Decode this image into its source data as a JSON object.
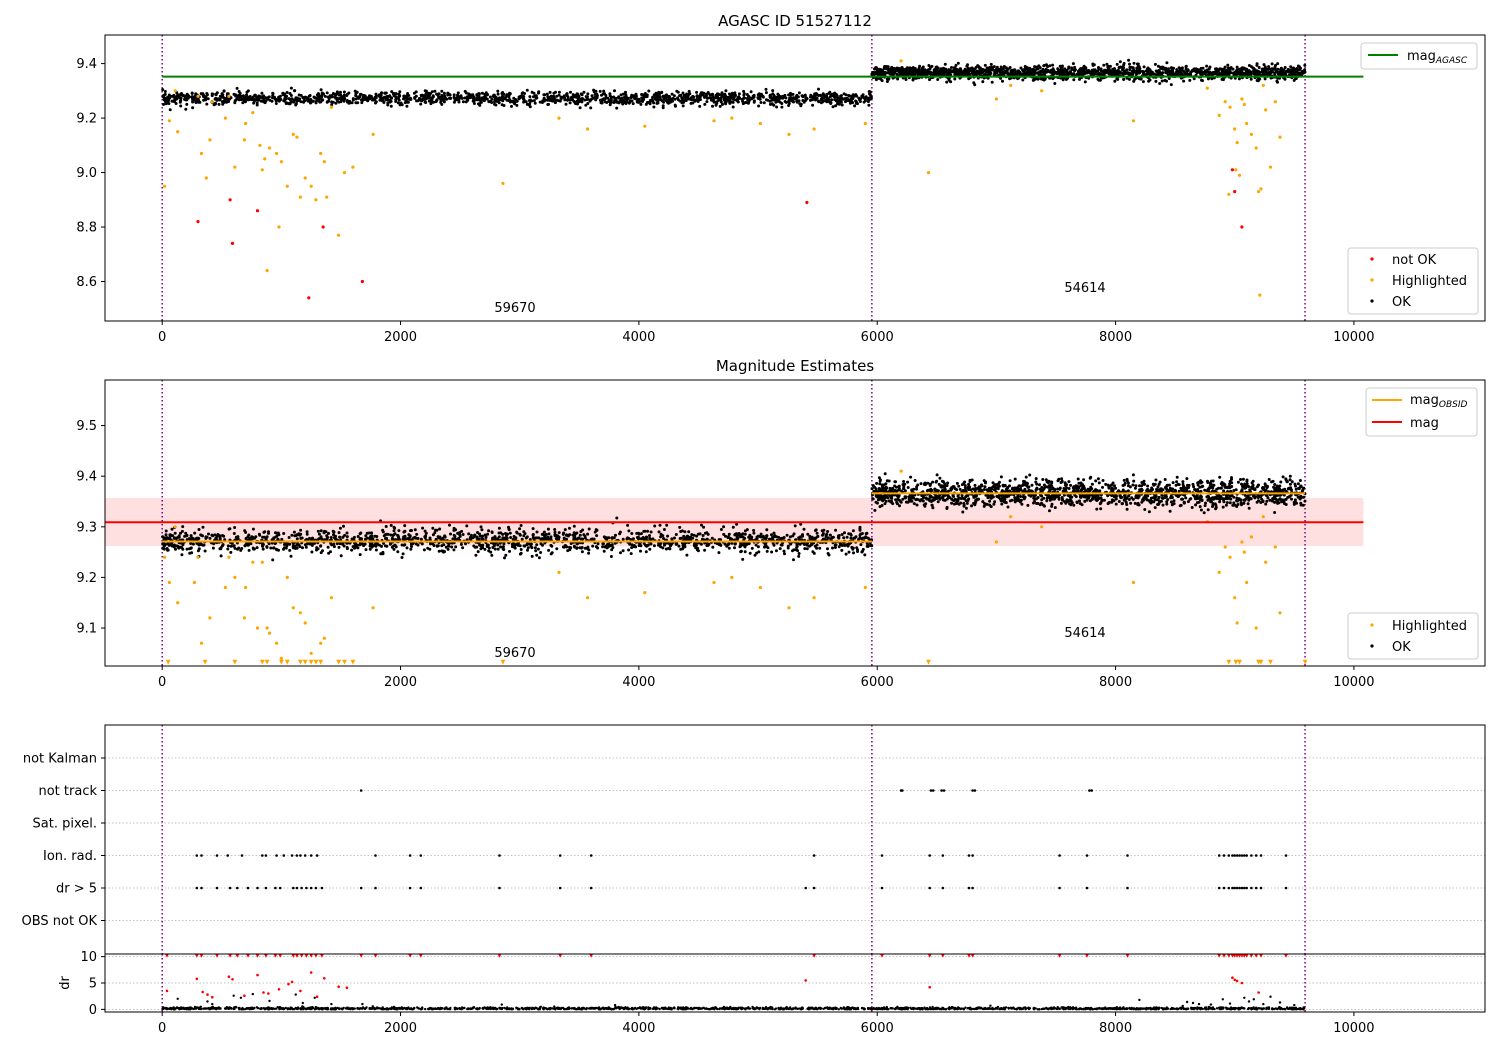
{
  "colors": {
    "ok": "#000000",
    "highlighted": "#ffa500",
    "not_ok": "#ff0000",
    "mag_agasc": "#008000",
    "mag_obsid": "#ffa500",
    "mag": "#ff0000",
    "band": "#ffcccc",
    "obs_boundary": "#800080",
    "grid": "#b0b0b0"
  },
  "chart_data": [
    {
      "type": "scatter",
      "title": "AGASC ID 51527112",
      "xlim": [
        -480,
        11100
      ],
      "ylim": [
        8.455,
        9.505
      ],
      "x_ticks": [
        0,
        2000,
        4000,
        6000,
        8000,
        10000
      ],
      "y_ticks": [
        8.6,
        8.8,
        9.0,
        9.2,
        9.4
      ],
      "y_tick_labels": [
        "8.6",
        "8.8",
        "9.0",
        "9.2",
        "9.4"
      ],
      "obs_boundaries": [
        0,
        5955,
        9590
      ],
      "annotations": [
        {
          "text": "59670",
          "x": 2970,
          "y": 8.49
        },
        {
          "text": "54614",
          "x": 7760,
          "y": 8.57
        }
      ],
      "reference_lines": [
        {
          "name": "mag",
          "sub": "AGASC",
          "y": 9.352,
          "x0": 0,
          "x1": 10080,
          "color": "#008000"
        }
      ],
      "segments": [
        {
          "x0": 0,
          "x1": 5955,
          "mean": 9.272,
          "spread": 0.012
        },
        {
          "x0": 5955,
          "x1": 9590,
          "mean": 9.366,
          "spread": 0.013
        }
      ],
      "highlighted_points": [
        [
          20,
          8.95
        ],
        [
          60,
          9.19
        ],
        [
          110,
          9.3
        ],
        [
          130,
          9.15
        ],
        [
          300,
          9.28
        ],
        [
          330,
          9.07
        ],
        [
          370,
          8.98
        ],
        [
          400,
          9.12
        ],
        [
          420,
          9.26
        ],
        [
          530,
          9.2
        ],
        [
          560,
          9.28
        ],
        [
          610,
          9.02
        ],
        [
          690,
          9.12
        ],
        [
          700,
          9.18
        ],
        [
          760,
          9.22
        ],
        [
          820,
          9.1
        ],
        [
          840,
          9.01
        ],
        [
          860,
          9.05
        ],
        [
          880,
          8.64
        ],
        [
          900,
          9.09
        ],
        [
          960,
          9.07
        ],
        [
          980,
          8.8
        ],
        [
          1000,
          9.04
        ],
        [
          1050,
          8.95
        ],
        [
          1100,
          9.14
        ],
        [
          1130,
          9.13
        ],
        [
          1160,
          8.91
        ],
        [
          1200,
          8.98
        ],
        [
          1250,
          8.95
        ],
        [
          1290,
          8.9
        ],
        [
          1330,
          9.07
        ],
        [
          1360,
          9.04
        ],
        [
          1380,
          8.91
        ],
        [
          1420,
          9.24
        ],
        [
          1480,
          8.77
        ],
        [
          1530,
          9.0
        ],
        [
          1600,
          9.02
        ],
        [
          1770,
          9.14
        ],
        [
          2860,
          8.96
        ],
        [
          3330,
          9.2
        ],
        [
          3570,
          9.16
        ],
        [
          4050,
          9.17
        ],
        [
          4630,
          9.19
        ],
        [
          4780,
          9.2
        ],
        [
          5020,
          9.18
        ],
        [
          5260,
          9.14
        ],
        [
          5470,
          9.16
        ],
        [
          5900,
          9.18
        ],
        [
          6200,
          9.41
        ],
        [
          6430,
          9.0
        ],
        [
          7000,
          9.27
        ],
        [
          7120,
          9.32
        ],
        [
          7380,
          9.3
        ],
        [
          8150,
          9.19
        ],
        [
          8770,
          9.31
        ],
        [
          8870,
          9.21
        ],
        [
          8920,
          9.26
        ],
        [
          8960,
          9.24
        ],
        [
          9000,
          9.16
        ],
        [
          9020,
          9.11
        ],
        [
          9040,
          8.99
        ],
        [
          9060,
          9.27
        ],
        [
          9080,
          9.25
        ],
        [
          9100,
          9.18
        ],
        [
          9140,
          9.14
        ],
        [
          9180,
          9.09
        ],
        [
          9200,
          8.93
        ],
        [
          9210,
          8.55
        ],
        [
          9240,
          9.32
        ],
        [
          9260,
          9.23
        ],
        [
          9300,
          9.02
        ],
        [
          9340,
          9.26
        ],
        [
          9380,
          9.13
        ],
        [
          8950,
          8.92
        ],
        [
          9010,
          9.01
        ],
        [
          9220,
          8.94
        ]
      ],
      "not_ok_points": [
        [
          300,
          8.82
        ],
        [
          570,
          8.9
        ],
        [
          590,
          8.74
        ],
        [
          800,
          8.86
        ],
        [
          1230,
          8.54
        ],
        [
          1350,
          8.8
        ],
        [
          1680,
          8.6
        ],
        [
          5410,
          8.89
        ],
        [
          8980,
          9.01
        ],
        [
          9000,
          8.93
        ],
        [
          9060,
          8.8
        ]
      ],
      "legends": [
        {
          "position": "top-right",
          "entries": [
            {
              "label": "mag",
              "sub": "AGASC",
              "kind": "line",
              "color": "#008000"
            }
          ]
        },
        {
          "position": "bottom-right",
          "entries": [
            {
              "label": "not OK",
              "kind": "dot",
              "color": "#ff0000"
            },
            {
              "label": "Highlighted",
              "kind": "dot",
              "color": "#ffa500"
            },
            {
              "label": "OK",
              "kind": "dot",
              "color": "#000000"
            }
          ]
        }
      ]
    },
    {
      "type": "scatter",
      "title": "Magnitude Estimates",
      "xlim": [
        -480,
        11100
      ],
      "ylim": [
        9.025,
        9.59
      ],
      "x_ticks": [
        0,
        2000,
        4000,
        6000,
        8000,
        10000
      ],
      "y_ticks": [
        9.1,
        9.2,
        9.3,
        9.4,
        9.5
      ],
      "y_tick_labels": [
        "9.1",
        "9.2",
        "9.3",
        "9.4",
        "9.5"
      ],
      "obs_boundaries": [
        0,
        5955,
        9590
      ],
      "annotations": [
        {
          "text": "59670",
          "x": 2970,
          "y": 9.045
        },
        {
          "text": "54614",
          "x": 7760,
          "y": 9.085
        }
      ],
      "band": {
        "y0": 9.262,
        "y1": 9.357,
        "x0": -480,
        "x1": 10080
      },
      "reference_lines": [
        {
          "name": "mag",
          "sub": "",
          "y": 9.309,
          "x0": -480,
          "x1": 10080,
          "color": "#ff0000"
        }
      ],
      "segment_lines": [
        {
          "x0": 0,
          "x1": 5955,
          "y": 9.271,
          "color": "#ffa500"
        },
        {
          "x0": 5955,
          "x1": 9590,
          "y": 9.366,
          "color": "#ffa500"
        }
      ],
      "segments": [
        {
          "x0": 0,
          "x1": 5955,
          "mean": 9.272,
          "spread": 0.012
        },
        {
          "x0": 5955,
          "x1": 9590,
          "mean": 9.366,
          "spread": 0.013
        }
      ],
      "highlighted_points": [
        [
          20,
          9.24
        ],
        [
          60,
          9.19
        ],
        [
          110,
          9.3
        ],
        [
          130,
          9.15
        ],
        [
          270,
          9.19
        ],
        [
          300,
          9.24
        ],
        [
          330,
          9.07
        ],
        [
          400,
          9.12
        ],
        [
          530,
          9.18
        ],
        [
          560,
          9.24
        ],
        [
          610,
          9.2
        ],
        [
          690,
          9.12
        ],
        [
          700,
          9.18
        ],
        [
          760,
          9.23
        ],
        [
          800,
          9.1
        ],
        [
          840,
          9.23
        ],
        [
          880,
          9.1
        ],
        [
          900,
          9.09
        ],
        [
          960,
          9.07
        ],
        [
          1000,
          9.04
        ],
        [
          1050,
          9.2
        ],
        [
          1100,
          9.14
        ],
        [
          1160,
          9.13
        ],
        [
          1200,
          9.11
        ],
        [
          1250,
          9.05
        ],
        [
          1330,
          9.07
        ],
        [
          1360,
          9.08
        ],
        [
          1420,
          9.16
        ],
        [
          1770,
          9.14
        ],
        [
          3330,
          9.21
        ],
        [
          3570,
          9.16
        ],
        [
          4050,
          9.17
        ],
        [
          4630,
          9.19
        ],
        [
          4780,
          9.2
        ],
        [
          5020,
          9.18
        ],
        [
          5260,
          9.14
        ],
        [
          5470,
          9.16
        ],
        [
          5900,
          9.18
        ],
        [
          6200,
          9.41
        ],
        [
          7000,
          9.27
        ],
        [
          7120,
          9.32
        ],
        [
          7380,
          9.3
        ],
        [
          8150,
          9.19
        ],
        [
          8770,
          9.31
        ],
        [
          8870,
          9.21
        ],
        [
          8920,
          9.26
        ],
        [
          8960,
          9.24
        ],
        [
          9000,
          9.16
        ],
        [
          9020,
          9.11
        ],
        [
          9060,
          9.27
        ],
        [
          9080,
          9.25
        ],
        [
          9100,
          9.19
        ],
        [
          9140,
          9.28
        ],
        [
          9180,
          9.1
        ],
        [
          9240,
          9.32
        ],
        [
          9260,
          9.23
        ],
        [
          9340,
          9.26
        ],
        [
          9380,
          9.13
        ]
      ],
      "clipped_points": [
        50,
        360,
        610,
        840,
        880,
        1000,
        1050,
        1160,
        1200,
        1250,
        1290,
        1330,
        1480,
        1530,
        1600,
        2860,
        6430,
        8950,
        9010,
        9040,
        9200,
        9220,
        9300,
        9590
      ],
      "legends": [
        {
          "position": "top-right",
          "entries": [
            {
              "label": "mag",
              "sub": "OBSID",
              "kind": "line",
              "color": "#ffa500"
            },
            {
              "label": "mag",
              "sub": "",
              "kind": "line",
              "color": "#ff0000"
            }
          ]
        },
        {
          "position": "bottom-right",
          "entries": [
            {
              "label": "Highlighted",
              "kind": "dot",
              "color": "#ffa500"
            },
            {
              "label": "OK",
              "kind": "dot",
              "color": "#000000"
            }
          ]
        }
      ]
    },
    {
      "type": "scatter",
      "title": "",
      "xlim": [
        -480,
        11100
      ],
      "categories": [
        "not Kalman",
        "not track",
        "Sat. pixel.",
        "Ion. rad.",
        "dr > 5",
        "OBS not OK"
      ],
      "obs_boundaries": [
        0,
        5955,
        9590
      ],
      "flag_events": {
        "not Kalman": [],
        "not track": [
          1670,
          6200,
          6210,
          6450,
          6470,
          6540,
          6560,
          6800,
          6820,
          7780,
          7800
        ],
        "Sat. pixel.": [],
        "Ion. rad.": [
          290,
          330,
          460,
          550,
          670,
          840,
          870,
          960,
          1020,
          1090,
          1130,
          1160,
          1200,
          1250,
          1300,
          1790,
          2080,
          2170,
          2830,
          3340,
          3600,
          5470,
          6040,
          6440,
          6550,
          6770,
          6800,
          7530,
          7760,
          8100,
          8870,
          8910,
          8950,
          8980,
          9000,
          9020,
          9040,
          9060,
          9080,
          9100,
          9140,
          9180,
          9220,
          9430
        ],
        "dr > 5": [
          290,
          330,
          460,
          570,
          630,
          720,
          800,
          870,
          950,
          990,
          1100,
          1130,
          1170,
          1210,
          1250,
          1290,
          1340,
          1670,
          1790,
          2080,
          2170,
          2830,
          3340,
          3600,
          5400,
          5470,
          6040,
          6440,
          6550,
          6770,
          6800,
          7530,
          7760,
          8100,
          8870,
          8910,
          8950,
          8980,
          9000,
          9020,
          9040,
          9060,
          9080,
          9100,
          9140,
          9180,
          9220,
          9430
        ],
        "OBS not OK": []
      }
    },
    {
      "type": "scatter",
      "title": "",
      "xlim": [
        -480,
        11100
      ],
      "ylim": [
        -0.5,
        10.5
      ],
      "ylabel": "dr",
      "x_ticks": [
        0,
        2000,
        4000,
        6000,
        8000,
        10000
      ],
      "y_ticks": [
        0,
        5,
        10
      ],
      "y_tick_labels": [
        "0",
        "5",
        "10"
      ],
      "obs_boundaries": [
        0,
        5955,
        9590
      ],
      "baseline": {
        "mean": 0.15,
        "spread": 0.12
      },
      "red_points": [
        [
          40,
          3.5
        ],
        [
          290,
          5.8
        ],
        [
          340,
          3.3
        ],
        [
          380,
          2.8
        ],
        [
          420,
          2.3
        ],
        [
          560,
          6.2
        ],
        [
          590,
          5.7
        ],
        [
          690,
          2.6
        ],
        [
          800,
          6.5
        ],
        [
          850,
          3.2
        ],
        [
          890,
          3.0
        ],
        [
          980,
          3.8
        ],
        [
          1060,
          4.8
        ],
        [
          1090,
          5.2
        ],
        [
          1160,
          3.5
        ],
        [
          1250,
          7.0
        ],
        [
          1300,
          2.4
        ],
        [
          1360,
          5.9
        ],
        [
          1480,
          4.3
        ],
        [
          1550,
          4.1
        ],
        [
          5400,
          5.5
        ],
        [
          6440,
          4.2
        ],
        [
          8980,
          6.0
        ],
        [
          9000,
          5.6
        ],
        [
          9020,
          5.4
        ],
        [
          9060,
          5.0
        ],
        [
          9200,
          3.2
        ]
      ],
      "red_clipped": [
        40,
        290,
        330,
        460,
        570,
        630,
        720,
        800,
        870,
        950,
        990,
        1100,
        1130,
        1170,
        1210,
        1250,
        1290,
        1340,
        1670,
        1790,
        2080,
        2170,
        2830,
        3340,
        3600,
        5470,
        6040,
        6440,
        6550,
        6770,
        6800,
        7530,
        7760,
        8100,
        8870,
        8910,
        8950,
        8980,
        9000,
        9020,
        9040,
        9060,
        9080,
        9100,
        9140,
        9180,
        9220,
        9430
      ],
      "black_points": [
        [
          130,
          2.0
        ],
        [
          380,
          1.5
        ],
        [
          420,
          1.0
        ],
        [
          600,
          2.6
        ],
        [
          660,
          2.2
        ],
        [
          760,
          2.9
        ],
        [
          900,
          1.6
        ],
        [
          1120,
          2.8
        ],
        [
          1180,
          1.2
        ],
        [
          1280,
          2.2
        ],
        [
          1420,
          1.0
        ],
        [
          1680,
          1.0
        ],
        [
          2850,
          0.9
        ],
        [
          3800,
          0.8
        ],
        [
          6950,
          0.7
        ],
        [
          8200,
          1.8
        ],
        [
          8600,
          1.4
        ],
        [
          8650,
          1.2
        ],
        [
          8700,
          1.0
        ],
        [
          8800,
          0.9
        ],
        [
          8900,
          1.9
        ],
        [
          8960,
          1.1
        ],
        [
          9080,
          2.2
        ],
        [
          9120,
          1.5
        ],
        [
          9160,
          1.9
        ],
        [
          9240,
          1.0
        ],
        [
          9300,
          2.4
        ],
        [
          9380,
          1.3
        ],
        [
          9500,
          0.8
        ]
      ]
    }
  ]
}
